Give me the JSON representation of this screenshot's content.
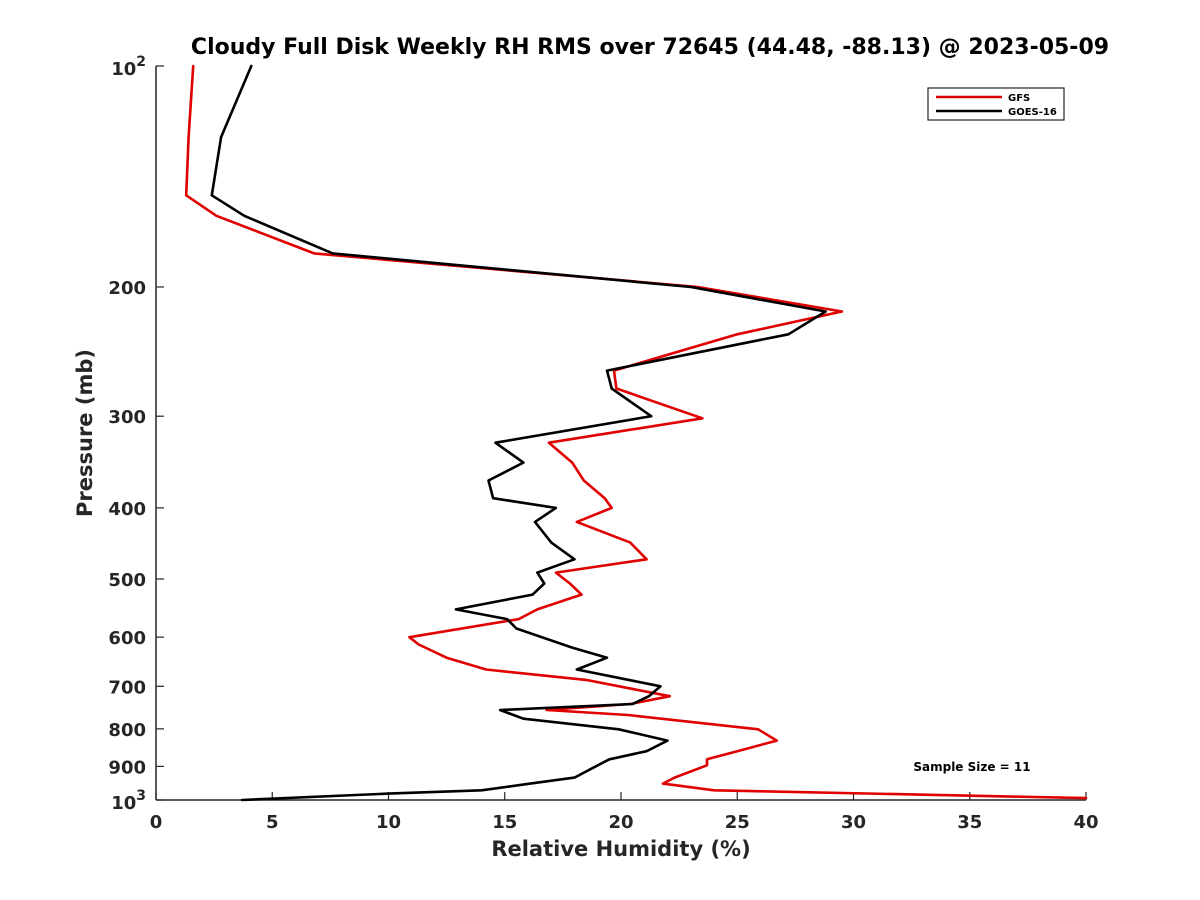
{
  "chart_data": {
    "type": "line",
    "title": "Cloudy Full Disk Weekly RH RMS over 72645 (44.48, -88.13) @ 2023-05-09",
    "xlabel": "Relative Humidity (%)",
    "ylabel": "Pressure (mb)",
    "xlim": [
      0,
      40
    ],
    "ylim": [
      100,
      1000
    ],
    "y_scale": "log",
    "y_reversed": true,
    "grid": false,
    "legend_position": "top-right",
    "x_ticks": [
      0,
      5,
      10,
      15,
      20,
      25,
      30,
      35,
      40
    ],
    "x_tick_labels": [
      "0",
      "5",
      "10",
      "15",
      "20",
      "25",
      "30",
      "35",
      "40"
    ],
    "y_ticks": [
      200,
      300,
      400,
      500,
      600,
      700,
      800,
      900
    ],
    "y_tick_labels": [
      "200",
      "300",
      "400",
      "500",
      "600",
      "700",
      "800",
      "900"
    ],
    "y_decade_ticks": [
      {
        "value": 100,
        "base": "10",
        "exp": "2"
      },
      {
        "value": 1000,
        "base": "10",
        "exp": "3"
      }
    ],
    "annotation": "Sample Size = 11",
    "series": [
      {
        "name": "GFS",
        "color": "#e00000",
        "points": [
          [
            1.6,
            100
          ],
          [
            1.4,
            125
          ],
          [
            1.3,
            150
          ],
          [
            2.6,
            160
          ],
          [
            6.8,
            180
          ],
          [
            23.3,
            200
          ],
          [
            29.5,
            216
          ],
          [
            25.0,
            232
          ],
          [
            19.7,
            260
          ],
          [
            19.8,
            275
          ],
          [
            23.5,
            302
          ],
          [
            16.9,
            326
          ],
          [
            17.9,
            347
          ],
          [
            18.4,
            367
          ],
          [
            19.3,
            388
          ],
          [
            19.6,
            400
          ],
          [
            18.1,
            418
          ],
          [
            20.4,
            446
          ],
          [
            21.1,
            470
          ],
          [
            17.2,
            490
          ],
          [
            17.8,
            507
          ],
          [
            18.3,
            525
          ],
          [
            16.4,
            550
          ],
          [
            15.6,
            567
          ],
          [
            10.9,
            600
          ],
          [
            11.3,
            614
          ],
          [
            12.5,
            640
          ],
          [
            14.2,
            664
          ],
          [
            18.5,
            686
          ],
          [
            22.1,
            722
          ],
          [
            20.4,
            740
          ],
          [
            16.8,
            754
          ],
          [
            20.3,
            766
          ],
          [
            25.9,
            801
          ],
          [
            26.7,
            830
          ],
          [
            25.0,
            858
          ],
          [
            23.7,
            880
          ],
          [
            23.7,
            897
          ],
          [
            22.3,
            932
          ],
          [
            21.8,
            950
          ],
          [
            24.0,
            970
          ],
          [
            40.0,
            994
          ]
        ]
      },
      {
        "name": "GOES-16",
        "color": "#000000",
        "points": [
          [
            4.1,
            100
          ],
          [
            2.8,
            125
          ],
          [
            2.4,
            150
          ],
          [
            3.8,
            160
          ],
          [
            7.6,
            180
          ],
          [
            23.0,
            200
          ],
          [
            28.8,
            216
          ],
          [
            27.2,
            232
          ],
          [
            19.4,
            260
          ],
          [
            19.6,
            275
          ],
          [
            21.3,
            300
          ],
          [
            14.6,
            326
          ],
          [
            15.8,
            347
          ],
          [
            14.3,
            367
          ],
          [
            14.5,
            388
          ],
          [
            17.2,
            400
          ],
          [
            16.3,
            418
          ],
          [
            17.0,
            446
          ],
          [
            18.0,
            470
          ],
          [
            16.4,
            490
          ],
          [
            16.7,
            507
          ],
          [
            16.2,
            525
          ],
          [
            12.9,
            550
          ],
          [
            15.1,
            567
          ],
          [
            15.5,
            584
          ],
          [
            17.9,
            620
          ],
          [
            19.4,
            640
          ],
          [
            18.1,
            664
          ],
          [
            21.7,
            700
          ],
          [
            21.2,
            722
          ],
          [
            20.5,
            740
          ],
          [
            14.8,
            754
          ],
          [
            15.8,
            775
          ],
          [
            19.9,
            801
          ],
          [
            22.0,
            830
          ],
          [
            21.1,
            858
          ],
          [
            19.5,
            880
          ],
          [
            19.0,
            897
          ],
          [
            18.0,
            932
          ],
          [
            16.1,
            950
          ],
          [
            14.0,
            970
          ],
          [
            10.0,
            980
          ],
          [
            3.7,
            1000
          ]
        ]
      }
    ]
  }
}
